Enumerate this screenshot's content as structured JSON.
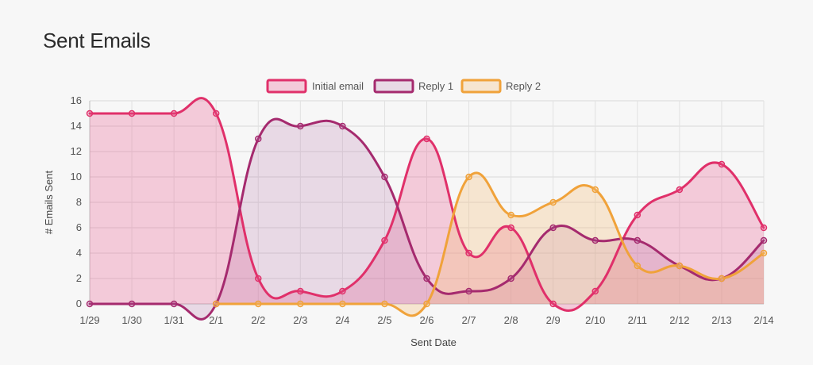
{
  "page": {
    "title": "Sent Emails"
  },
  "chart_data": {
    "type": "area",
    "x": [
      "1/29",
      "1/30",
      "1/31",
      "2/1",
      "2/2",
      "2/3",
      "2/4",
      "2/5",
      "2/6",
      "2/7",
      "2/8",
      "2/9",
      "2/10",
      "2/11",
      "2/12",
      "2/13",
      "2/14"
    ],
    "xlabel": "Sent Date",
    "ylabel": "# Emails Sent",
    "ylim": [
      0,
      16
    ],
    "yticks": [
      0,
      2,
      4,
      6,
      8,
      10,
      12,
      14,
      16
    ],
    "grid": true,
    "legend_position": "top-center",
    "series": [
      {
        "name": "Initial email",
        "color": "#e0306a",
        "fill": "rgba(232, 85, 140, 0.28)",
        "values": [
          15,
          15,
          15,
          15,
          2,
          1,
          1,
          5,
          13,
          4,
          6,
          0,
          1,
          7,
          9,
          11,
          6
        ]
      },
      {
        "name": "Reply 1",
        "color": "#a52a6e",
        "fill": "rgba(175, 100, 160, 0.20)",
        "values": [
          0,
          0,
          0,
          0,
          13,
          14,
          14,
          10,
          2,
          1,
          2,
          6,
          5,
          5,
          3,
          2,
          5
        ]
      },
      {
        "name": "Reply 2",
        "color": "#f0a23a",
        "fill": "rgba(244, 190, 120, 0.30)",
        "values": [
          null,
          null,
          null,
          0,
          0,
          0,
          0,
          0,
          0,
          10,
          7,
          8,
          9,
          3,
          3,
          2,
          4
        ]
      }
    ]
  }
}
